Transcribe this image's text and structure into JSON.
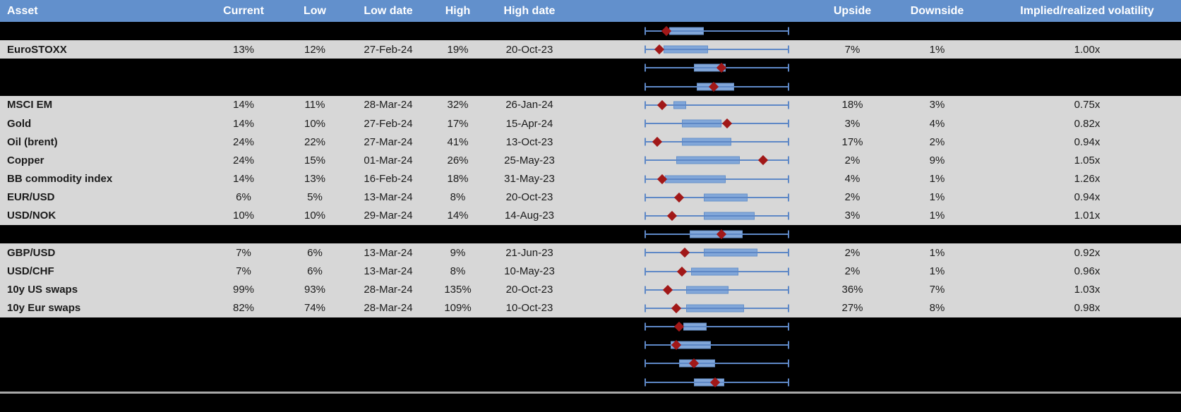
{
  "colors": {
    "header_bg": "#6290CC",
    "header_text": "#FFFFFF",
    "row_gray": "#D7D7D7",
    "row_black": "#000000",
    "whisker": "#5E88C6",
    "box_fill": "#82A7D9",
    "box_border": "#6690C9",
    "marker": "#A11818",
    "divider": "#A8A8A8"
  },
  "header": {
    "asset": "Asset",
    "current": "Current",
    "low": "Low",
    "low_date": "Low date",
    "high": "High",
    "high_date": "High date",
    "upside": "Upside",
    "downside": "Downside",
    "implied_realized": "Implied/realized volatility"
  },
  "chart_data": {
    "type": "table",
    "columns": [
      "Asset",
      "Current",
      "Low",
      "Low date",
      "High",
      "High date",
      "1y range boxplot",
      "Upside",
      "Downside",
      "Implied/realized volatility"
    ],
    "plot_note": "Each row shows a horizontal box-and-whisker strip (whiskers span full track, fractions 0-1 of track width) with a dark-red diamond marker; 'box' = [left,right] fraction, 'marker' = diamond center fraction.",
    "rows": [
      {
        "bg": "black",
        "plot": {
          "box": [
            0.17,
            0.41
          ],
          "marker": 0.15
        }
      },
      {
        "bg": "gray",
        "asset": "EuroSTOXX",
        "current": "13%",
        "low": "12%",
        "low_date": "27-Feb-24",
        "high": "19%",
        "high_date": "20-Oct-23",
        "upside": "7%",
        "downside": "1%",
        "ratio": "1.00x",
        "plot": {
          "box": [
            0.13,
            0.44
          ],
          "marker": 0.1
        }
      },
      {
        "bg": "black",
        "plot": {
          "box": [
            0.34,
            0.56
          ],
          "marker": 0.53
        }
      },
      {
        "bg": "black",
        "plot": {
          "box": [
            0.36,
            0.62
          ],
          "marker": 0.48
        }
      },
      {
        "bg": "gray",
        "asset": "MSCI EM",
        "current": "14%",
        "low": "11%",
        "low_date": "28-Mar-24",
        "high": "32%",
        "high_date": "26-Jan-24",
        "upside": "18%",
        "downside": "3%",
        "ratio": "0.75x",
        "plot": {
          "box": [
            0.2,
            0.29
          ],
          "marker": 0.12
        }
      },
      {
        "bg": "gray",
        "asset": "Gold",
        "current": "14%",
        "low": "10%",
        "low_date": "27-Feb-24",
        "high": "17%",
        "high_date": "15-Apr-24",
        "upside": "3%",
        "downside": "4%",
        "ratio": "0.82x",
        "plot": {
          "box": [
            0.26,
            0.53
          ],
          "marker": 0.57
        }
      },
      {
        "bg": "gray",
        "asset": "Oil (brent)",
        "current": "24%",
        "low": "22%",
        "low_date": "27-Mar-24",
        "high": "41%",
        "high_date": "13-Oct-23",
        "upside": "17%",
        "downside": "2%",
        "ratio": "0.94x",
        "plot": {
          "box": [
            0.26,
            0.6
          ],
          "marker": 0.09
        }
      },
      {
        "bg": "gray",
        "asset": "Copper",
        "current": "24%",
        "low": "15%",
        "low_date": "01-Mar-24",
        "high": "26%",
        "high_date": "25-May-23",
        "upside": "2%",
        "downside": "9%",
        "ratio": "1.05x",
        "plot": {
          "box": [
            0.22,
            0.66
          ],
          "marker": 0.82
        }
      },
      {
        "bg": "gray",
        "asset": "BB commodity index",
        "current": "14%",
        "low": "13%",
        "low_date": "16-Feb-24",
        "high": "18%",
        "high_date": "31-May-23",
        "upside": "4%",
        "downside": "1%",
        "ratio": "1.26x",
        "plot": {
          "box": [
            0.14,
            0.56
          ],
          "marker": 0.12
        }
      },
      {
        "bg": "gray",
        "asset": "EUR/USD",
        "current": "6%",
        "low": "5%",
        "low_date": "13-Mar-24",
        "high": "8%",
        "high_date": "20-Oct-23",
        "upside": "2%",
        "downside": "1%",
        "ratio": "0.94x",
        "plot": {
          "box": [
            0.41,
            0.71
          ],
          "marker": 0.24
        }
      },
      {
        "bg": "gray",
        "asset": "USD/NOK",
        "current": "10%",
        "low": "10%",
        "low_date": "29-Mar-24",
        "high": "14%",
        "high_date": "14-Aug-23",
        "upside": "3%",
        "downside": "1%",
        "ratio": "1.01x",
        "plot": {
          "box": [
            0.41,
            0.76
          ],
          "marker": 0.19
        }
      },
      {
        "bg": "black",
        "plot": {
          "box": [
            0.31,
            0.68
          ],
          "marker": 0.53
        }
      },
      {
        "bg": "gray",
        "asset": "GBP/USD",
        "current": "7%",
        "low": "6%",
        "low_date": "13-Mar-24",
        "high": "9%",
        "high_date": "21-Jun-23",
        "upside": "2%",
        "downside": "1%",
        "ratio": "0.92x",
        "plot": {
          "box": [
            0.41,
            0.78
          ],
          "marker": 0.28
        }
      },
      {
        "bg": "gray",
        "asset": "USD/CHF",
        "current": "7%",
        "low": "6%",
        "low_date": "13-Mar-24",
        "high": "8%",
        "high_date": "10-May-23",
        "upside": "2%",
        "downside": "1%",
        "ratio": "0.96x",
        "plot": {
          "box": [
            0.32,
            0.65
          ],
          "marker": 0.26
        }
      },
      {
        "bg": "gray",
        "asset": "10y US swaps",
        "current": "99%",
        "low": "93%",
        "low_date": "28-Mar-24",
        "high": "135%",
        "high_date": "20-Oct-23",
        "upside": "36%",
        "downside": "7%",
        "ratio": "1.03x",
        "plot": {
          "box": [
            0.29,
            0.58
          ],
          "marker": 0.16
        }
      },
      {
        "bg": "gray",
        "asset": "10y Eur swaps",
        "current": "82%",
        "low": "74%",
        "low_date": "28-Mar-24",
        "high": "109%",
        "high_date": "10-Oct-23",
        "upside": "27%",
        "downside": "8%",
        "ratio": "0.98x",
        "plot": {
          "box": [
            0.29,
            0.69
          ],
          "marker": 0.22
        }
      },
      {
        "bg": "black",
        "plot": {
          "box": [
            0.27,
            0.43
          ],
          "marker": 0.24
        }
      },
      {
        "bg": "black",
        "plot": {
          "box": [
            0.18,
            0.46
          ],
          "marker": 0.22
        }
      },
      {
        "bg": "black",
        "plot": {
          "box": [
            0.24,
            0.49
          ],
          "marker": 0.34
        }
      },
      {
        "bg": "black",
        "plot": {
          "box": [
            0.34,
            0.55
          ],
          "marker": 0.49
        }
      }
    ]
  }
}
